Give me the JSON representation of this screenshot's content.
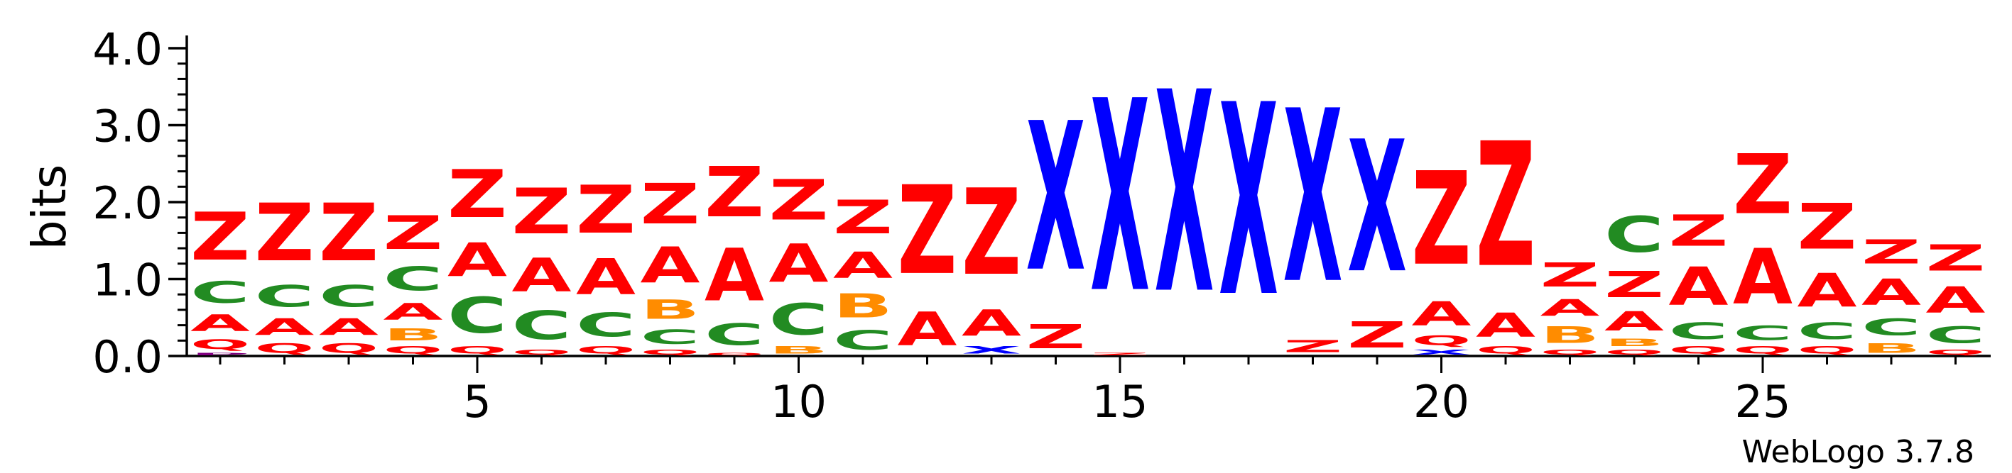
{
  "chart_data": {
    "type": "sequence-logo",
    "ylabel": "bits",
    "ylim": [
      0,
      4.2
    ],
    "y_ticks": [
      "0.0",
      "1.0",
      "2.0",
      "3.0",
      "4.0"
    ],
    "x_ticks": [
      5,
      10,
      15,
      20,
      25
    ],
    "positions": [
      1,
      28
    ],
    "credit": "WebLogo 3.7.8",
    "colors": {
      "Z": "#ff0000",
      "A": "#ff0000",
      "Q": "#ff0000",
      "C": "#228b22",
      "B": "#ff8c00",
      "X": "#0000ff",
      "P": "#800080"
    },
    "stacks": [
      [
        [
          "P",
          0.05
        ],
        [
          "Q",
          0.2
        ],
        [
          "A",
          0.35
        ],
        [
          "C",
          0.45
        ],
        [
          "Z",
          1.0
        ]
      ],
      [
        [
          "Q",
          0.2
        ],
        [
          "A",
          0.35
        ],
        [
          "C",
          0.45
        ],
        [
          "Z",
          1.2
        ]
      ],
      [
        [
          "Q",
          0.2
        ],
        [
          "A",
          0.35
        ],
        [
          "C",
          0.45
        ],
        [
          "Z",
          1.2
        ]
      ],
      [
        [
          "Q",
          0.15
        ],
        [
          "B",
          0.25
        ],
        [
          "A",
          0.35
        ],
        [
          "C",
          0.5
        ],
        [
          "Z",
          0.7
        ]
      ],
      [
        [
          "Q",
          0.15
        ],
        [
          "C",
          0.75
        ],
        [
          "A",
          0.7
        ],
        [
          "Z",
          1.0
        ]
      ],
      [
        [
          "Q",
          0.1
        ],
        [
          "C",
          0.6
        ],
        [
          "A",
          0.7
        ],
        [
          "Z",
          0.95
        ]
      ],
      [
        [
          "Q",
          0.15
        ],
        [
          "C",
          0.5
        ],
        [
          "A",
          0.75
        ],
        [
          "Z",
          1.0
        ]
      ],
      [
        [
          "Q",
          0.1
        ],
        [
          "C",
          0.3
        ],
        [
          "B",
          0.4
        ],
        [
          "A",
          0.75
        ],
        [
          "Z",
          0.85
        ]
      ],
      [
        [
          "Q",
          0.05
        ],
        [
          "C",
          0.45
        ],
        [
          "A",
          1.1
        ],
        [
          "Z",
          1.05
        ]
      ],
      [
        [
          "B",
          0.15
        ],
        [
          "C",
          0.65
        ],
        [
          "A",
          0.8
        ],
        [
          "Z",
          0.85
        ]
      ],
      [
        [
          "C",
          0.4
        ],
        [
          "B",
          0.5
        ],
        [
          "A",
          0.55
        ],
        [
          "Z",
          0.7
        ]
      ],
      [
        [
          "A",
          0.7
        ],
        [
          "Z",
          1.85
        ]
      ],
      [
        [
          "X",
          0.15
        ],
        [
          "A",
          0.55
        ],
        [
          "Z",
          1.8
        ]
      ],
      [
        [
          "Z",
          0.5
        ],
        [
          "X",
          3.1
        ]
      ],
      [
        [
          "Z",
          0.05
        ],
        [
          "X",
          4.0
        ]
      ],
      [
        [
          "X",
          4.2
        ]
      ],
      [
        [
          "X",
          4.0
        ]
      ],
      [
        [
          "Z",
          0.25
        ],
        [
          "X",
          3.6
        ]
      ],
      [
        [
          "Z",
          0.55
        ],
        [
          "X",
          2.75
        ]
      ],
      [
        [
          "X",
          0.1
        ],
        [
          "Q",
          0.2
        ],
        [
          "A",
          0.5
        ],
        [
          "Z",
          1.95
        ]
      ],
      [
        [
          "Q",
          0.15
        ],
        [
          "A",
          0.5
        ],
        [
          "Z",
          2.6
        ]
      ],
      [
        [
          "Q",
          0.1
        ],
        [
          "B",
          0.35
        ],
        [
          "A",
          0.35
        ],
        [
          "Z",
          0.5
        ]
      ],
      [
        [
          "Q",
          0.1
        ],
        [
          "B",
          0.15
        ],
        [
          "A",
          0.4
        ],
        [
          "Z",
          0.55
        ],
        [
          "C",
          0.75
        ]
      ],
      [
        [
          "Q",
          0.15
        ],
        [
          "C",
          0.35
        ],
        [
          "A",
          0.8
        ],
        [
          "Z",
          0.65
        ]
      ],
      [
        [
          "Q",
          0.15
        ],
        [
          "C",
          0.3
        ],
        [
          "A",
          1.15
        ],
        [
          "Z",
          1.25
        ]
      ],
      [
        [
          "Q",
          0.15
        ],
        [
          "C",
          0.35
        ],
        [
          "A",
          0.7
        ],
        [
          "Z",
          0.95
        ]
      ],
      [
        [
          "B",
          0.2
        ],
        [
          "C",
          0.35
        ],
        [
          "A",
          0.55
        ],
        [
          "Z",
          0.5
        ]
      ],
      [
        [
          "Q",
          0.1
        ],
        [
          "C",
          0.35
        ],
        [
          "A",
          0.55
        ],
        [
          "Z",
          0.55
        ]
      ]
    ]
  }
}
